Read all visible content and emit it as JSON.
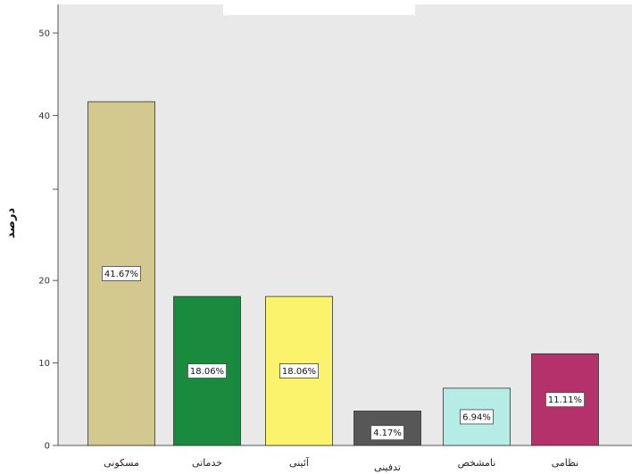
{
  "chart_data": {
    "type": "bar",
    "title": "",
    "xlabel": "",
    "ylabel": "درصد",
    "ylim": [
      0,
      50
    ],
    "yticks": [
      0,
      10,
      20,
      40,
      50
    ],
    "grid": false,
    "categories": [
      "مسکونی",
      "خدماتی",
      "آئینی",
      "تدفینی",
      "نامشخص",
      "نظامی"
    ],
    "values": [
      41.67,
      18.06,
      18.06,
      4.17,
      6.94,
      11.11
    ],
    "data_labels": [
      "41.67%",
      "18.06%",
      "18.06%",
      "4.17%",
      "6.94%",
      "11.11%"
    ],
    "colors": [
      "#d3c88e",
      "#1a8a3e",
      "#fbf36b",
      "#575757",
      "#b6ece6",
      "#b5316c"
    ],
    "plot_background": "#e9e9e9"
  }
}
